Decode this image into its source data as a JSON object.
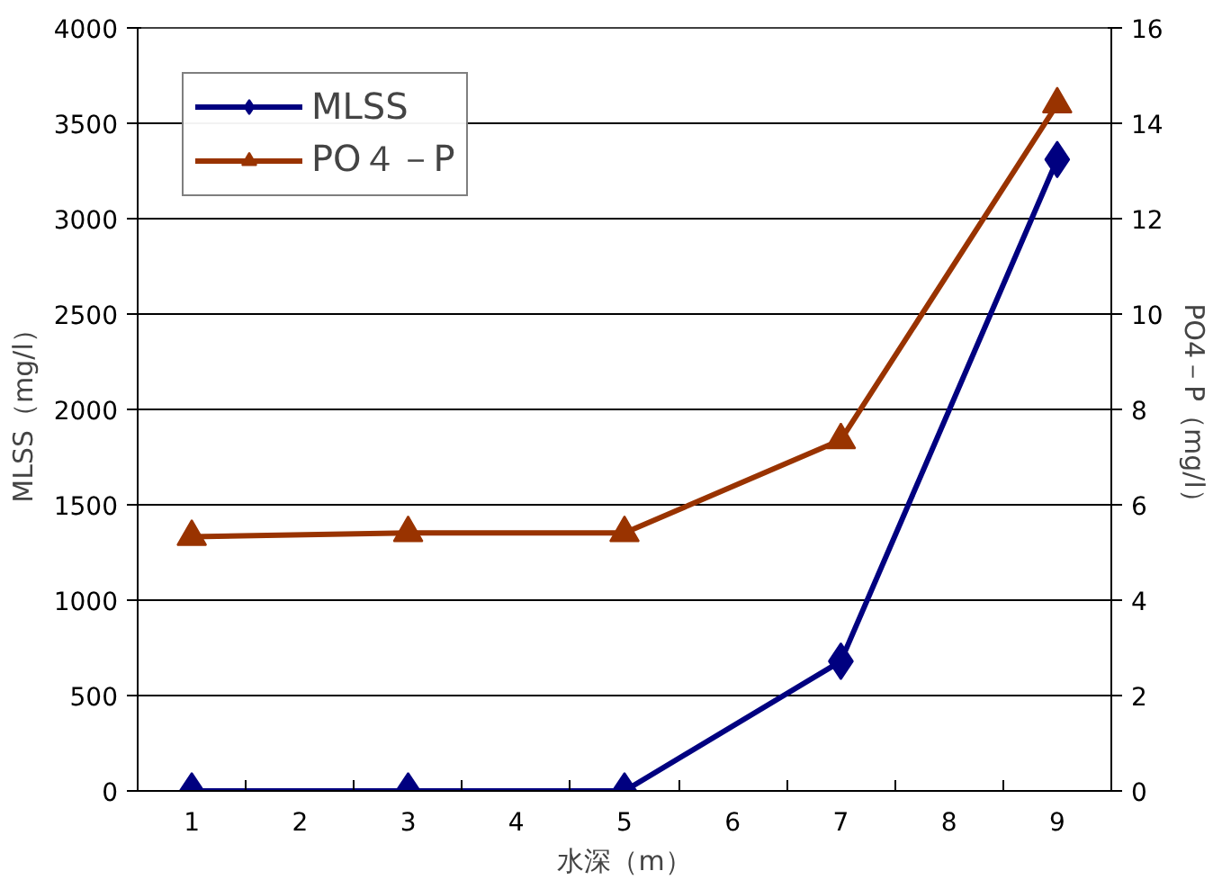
{
  "chart_data": {
    "type": "line",
    "xlabel": "水深（m）",
    "ylabel": "MLSS（mg/l）",
    "y2label": "PO4－P（mg/l）",
    "x": [
      1,
      3,
      5,
      7,
      9
    ],
    "xlim": [
      0.5,
      9.5
    ],
    "xticks": [
      1,
      2,
      3,
      4,
      5,
      6,
      7,
      8,
      9
    ],
    "ylim": [
      0,
      4000
    ],
    "yticks": [
      0,
      500,
      1000,
      1500,
      2000,
      2500,
      3000,
      3500,
      4000
    ],
    "y2lim": [
      0,
      16
    ],
    "y2ticks": [
      0,
      2,
      4,
      6,
      8,
      10,
      12,
      14,
      16
    ],
    "grid": "y",
    "legend": "top left",
    "series": [
      {
        "name": "MLSS",
        "color": "#000080",
        "marker": "diamond",
        "values": [
          0,
          0,
          0,
          680,
          3310
        ]
      },
      {
        "name": "PO４－P",
        "color": "#993300",
        "marker": "triangle",
        "axis": "y2",
        "values": [
          5.33,
          5.41,
          5.41,
          7.36,
          14.4
        ]
      }
    ]
  }
}
